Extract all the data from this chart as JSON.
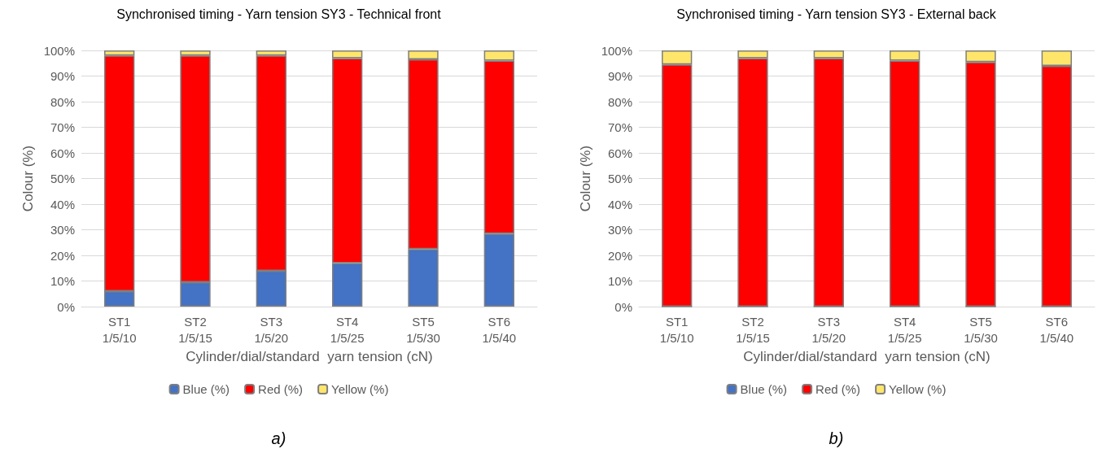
{
  "chart_data": [
    {
      "type": "bar",
      "title": "Synchronised timing - Yarn tension SY3 - Technical front",
      "xlabel": "Cylinder/dial/standard  yarn tension (cN)",
      "ylabel": "Colour (%)",
      "categories": [
        "ST1\n1/5/10",
        "ST2\n1/5/15",
        "ST3\n1/5/20",
        "ST4\n1/5/25",
        "ST5\n1/5/30",
        "ST6\n1/5/40"
      ],
      "stacked": true,
      "ylim": [
        0,
        100
      ],
      "yticks": [
        {
          "value": 0,
          "label": "0%"
        },
        {
          "value": 10,
          "label": "10%"
        },
        {
          "value": 20,
          "label": "20%"
        },
        {
          "value": 30,
          "label": "30%"
        },
        {
          "value": 40,
          "label": "40%"
        },
        {
          "value": 50,
          "label": "50%"
        },
        {
          "value": 60,
          "label": "60%"
        },
        {
          "value": 70,
          "label": "70%"
        },
        {
          "value": 80,
          "label": "80%"
        },
        {
          "value": 90,
          "label": "90%"
        },
        {
          "value": 100,
          "label": "100%"
        }
      ],
      "grid": "y",
      "legend": "bottom",
      "annotations": [
        "a)"
      ],
      "series": [
        {
          "name": "Blue (%)",
          "color": "#4472c4",
          "values": [
            6,
            9.5,
            14,
            17,
            22.5,
            28.5
          ]
        },
        {
          "name": "Red (%)",
          "color": "#ff0000",
          "values": [
            92,
            88.5,
            84,
            80,
            74,
            67.5
          ]
        },
        {
          "name": "Yellow (%)",
          "color": "#ffe66b",
          "values": [
            2,
            2,
            2,
            3,
            3.5,
            4
          ]
        }
      ]
    },
    {
      "type": "bar",
      "title": "Synchronised timing - Yarn tension SY3 - External back",
      "xlabel": "Cylinder/dial/standard  yarn tension (cN)",
      "ylabel": "Colour (%)",
      "categories": [
        "ST1\n1/5/10",
        "ST2\n1/5/15",
        "ST3\n1/5/20",
        "ST4\n1/5/25",
        "ST5\n1/5/30",
        "ST6\n1/5/40"
      ],
      "stacked": true,
      "ylim": [
        0,
        100
      ],
      "yticks": [
        {
          "value": 0,
          "label": "0%"
        },
        {
          "value": 10,
          "label": "10%"
        },
        {
          "value": 20,
          "label": "20%"
        },
        {
          "value": 30,
          "label": "30%"
        },
        {
          "value": 40,
          "label": "40%"
        },
        {
          "value": 50,
          "label": "50%"
        },
        {
          "value": 60,
          "label": "60%"
        },
        {
          "value": 70,
          "label": "70%"
        },
        {
          "value": 80,
          "label": "80%"
        },
        {
          "value": 90,
          "label": "90%"
        },
        {
          "value": 100,
          "label": "100%"
        }
      ],
      "grid": "y",
      "legend": "bottom",
      "annotations": [
        "b)"
      ],
      "series": [
        {
          "name": "Blue (%)",
          "color": "#4472c4",
          "values": [
            0,
            0,
            0,
            0,
            0,
            0
          ]
        },
        {
          "name": "Red (%)",
          "color": "#ff0000",
          "values": [
            94.5,
            97,
            97,
            96,
            95.5,
            94
          ]
        },
        {
          "name": "Yellow (%)",
          "color": "#ffe66b",
          "values": [
            5.5,
            3,
            3,
            4,
            4.5,
            6
          ]
        }
      ]
    }
  ]
}
